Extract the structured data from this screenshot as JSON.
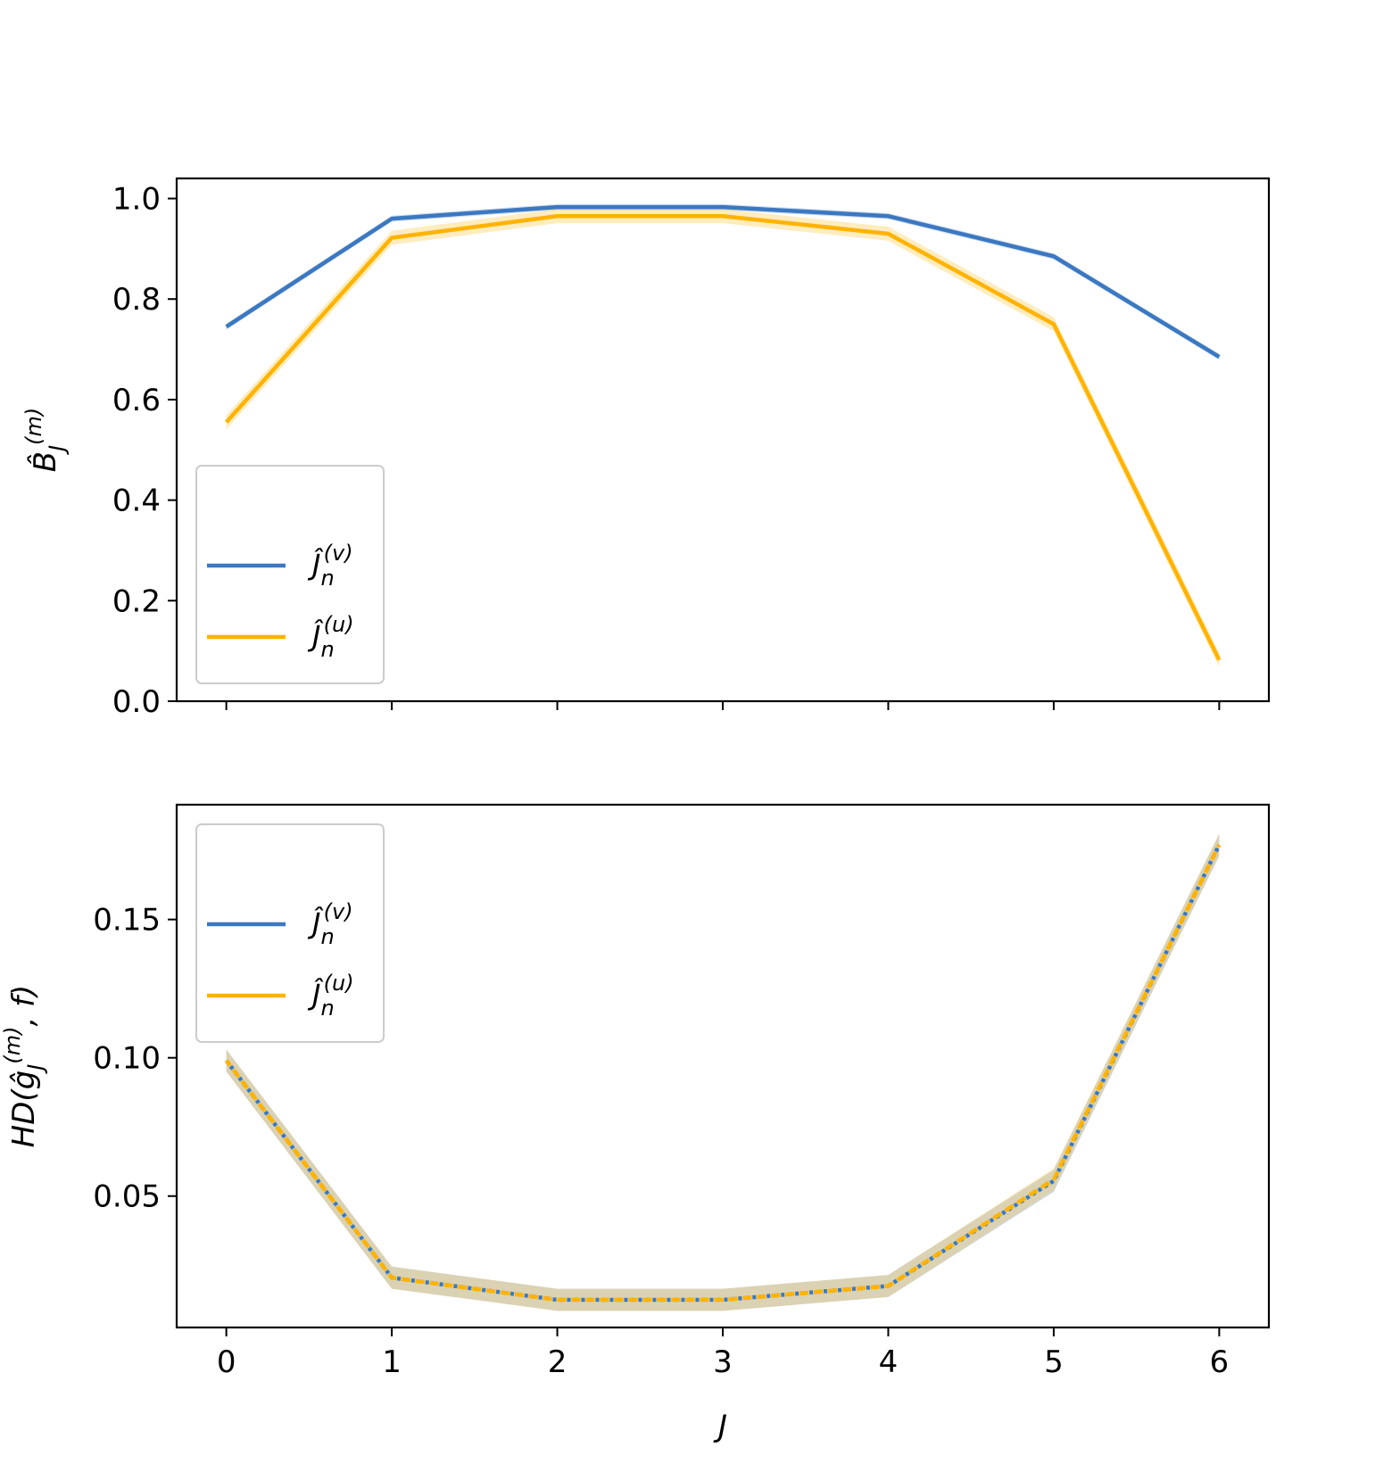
{
  "figure": {
    "background": "#ffffff"
  },
  "colors": {
    "blue": "#3b78c1",
    "orange": "#ffb300"
  },
  "chart_data": [
    {
      "type": "line",
      "panel": "top",
      "x": [
        0,
        1,
        2,
        3,
        4,
        5,
        6
      ],
      "xlim": [
        -0.3,
        6.3
      ],
      "ylim": [
        0,
        1.04
      ],
      "yticks": [
        "0.0",
        "0.2",
        "0.4",
        "0.6",
        "0.8",
        "1.0"
      ],
      "ytick_values": [
        0,
        0.2,
        0.4,
        0.6,
        0.8,
        1.0
      ],
      "xticks_labeled": false,
      "ylabel": "B̂_J^{(m)}",
      "xlabel": "",
      "grid": false,
      "legend": "lower-left",
      "series": [
        {
          "name": "Ĵ_n^{(v)}",
          "color": "#3b78c1",
          "linestyle": "solid",
          "values": [
            0.745,
            0.96,
            0.983,
            0.983,
            0.965,
            0.885,
            0.685
          ],
          "band": 0.006
        },
        {
          "name": "Ĵ_n^{(u)}",
          "color": "#ffb300",
          "linestyle": "solid",
          "values": [
            0.555,
            0.922,
            0.965,
            0.965,
            0.93,
            0.75,
            0.082
          ],
          "band": 0.014
        }
      ]
    },
    {
      "type": "line",
      "panel": "bottom",
      "x": [
        0,
        1,
        2,
        3,
        4,
        5,
        6
      ],
      "xlim": [
        -0.3,
        6.3
      ],
      "ylim": [
        0.0025,
        0.1915
      ],
      "yticks": [
        "0.05",
        "0.10",
        "0.15"
      ],
      "ytick_values": [
        0.05,
        0.1,
        0.15
      ],
      "xticks": [
        "0",
        "1",
        "2",
        "3",
        "4",
        "5",
        "6"
      ],
      "xlabel": "J",
      "ylabel": "HD(ĝ_J^{(m)}, f)",
      "grid": false,
      "legend": "upper-left",
      "series": [
        {
          "name": "Ĵ_n^{(v)}",
          "color": "#3b78c1",
          "linestyle": "dotted",
          "values": [
            0.099,
            0.0205,
            0.0125,
            0.0125,
            0.0175,
            0.0555,
            0.177
          ],
          "band": 0.004
        },
        {
          "name": "Ĵ_n^{(u)}",
          "color": "#ffb300",
          "linestyle": "dashed",
          "values": [
            0.099,
            0.0205,
            0.0125,
            0.0125,
            0.0175,
            0.056,
            0.177
          ],
          "band": 0.004
        }
      ]
    }
  ]
}
